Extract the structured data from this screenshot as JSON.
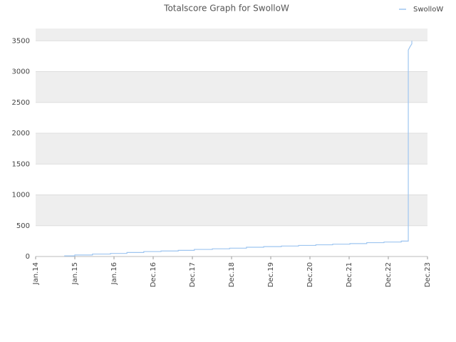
{
  "chart_data": {
    "type": "line",
    "title": "Totalscore Graph for SwolloW",
    "series": [
      {
        "name": "SwolloW",
        "color": "#9ec5f0",
        "x": [
          0.73,
          1.0,
          1.0,
          1.45,
          1.45,
          1.91,
          1.91,
          2.33,
          2.33,
          2.76,
          2.76,
          3.2,
          3.2,
          3.64,
          3.64,
          4.05,
          4.05,
          4.51,
          4.51,
          4.95,
          4.95,
          5.38,
          5.38,
          5.82,
          5.82,
          6.27,
          6.27,
          6.71,
          6.71,
          7.15,
          7.15,
          7.58,
          7.58,
          8.02,
          8.02,
          8.45,
          8.45,
          8.89,
          8.89,
          9.33,
          9.33,
          9.51,
          9.51,
          9.55,
          9.6,
          9.6
        ],
        "values": [
          10,
          10,
          25,
          25,
          40,
          40,
          50,
          50,
          65,
          65,
          80,
          80,
          90,
          90,
          100,
          100,
          115,
          115,
          125,
          125,
          135,
          135,
          150,
          150,
          160,
          160,
          170,
          170,
          180,
          180,
          190,
          190,
          200,
          200,
          210,
          210,
          225,
          225,
          235,
          235,
          250,
          250,
          3350,
          3400,
          3450,
          3500
        ]
      }
    ],
    "xlim": [
      0,
      10
    ],
    "xticks": [
      {
        "value": 0,
        "label": "Jan.14"
      },
      {
        "value": 1,
        "label": "Jan.15"
      },
      {
        "value": 2,
        "label": "Jan.16"
      },
      {
        "value": 3,
        "label": "Dec.16"
      },
      {
        "value": 4,
        "label": "Dec.17"
      },
      {
        "value": 5,
        "label": "Dec.18"
      },
      {
        "value": 6,
        "label": "Dec.19"
      },
      {
        "value": 7,
        "label": "Dec.20"
      },
      {
        "value": 8,
        "label": "Dec.21"
      },
      {
        "value": 9,
        "label": "Dec.22"
      },
      {
        "value": 10,
        "label": "Dec.23"
      }
    ],
    "ylim": [
      0,
      3700
    ],
    "yticks": [
      0,
      500,
      1000,
      1500,
      2000,
      2500,
      3000,
      3500
    ],
    "grid": true,
    "legend": "top-right"
  }
}
